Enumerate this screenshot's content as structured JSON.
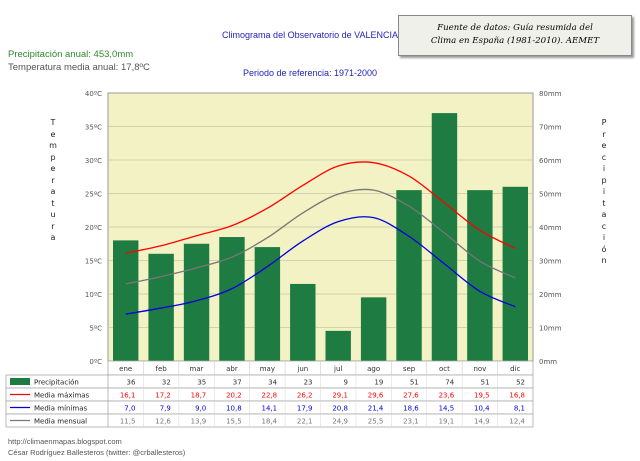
{
  "chart_data": {
    "type": "bar+line",
    "title": "Climograma del Observatorio de VALENCIA",
    "subtitle": "Periodo de referencia: 1971-2000",
    "source_note_line1": "Fuente de datos: Guía resumida del",
    "source_note_line2": "Clima en España (1981-2010). AEMET",
    "annual_precipitation": "Precipitación anual: 453,0mm",
    "annual_temperature": "Temperatura media anual: 17,8ºC",
    "left_axis_label": "Temperatura",
    "right_axis_label": "Precipitación",
    "categories": [
      "ene",
      "feb",
      "mar",
      "abr",
      "may",
      "jun",
      "jul",
      "ago",
      "sep",
      "oct",
      "nov",
      "dic"
    ],
    "left_ylim": [
      0,
      40
    ],
    "left_ticks": [
      "0ºC",
      "5ºC",
      "10ºC",
      "15ºC",
      "20ºC",
      "25ºC",
      "30ºC",
      "35ºC",
      "40ºC"
    ],
    "right_ylim": [
      0,
      80
    ],
    "right_ticks": [
      "0mm",
      "10mm",
      "20mm",
      "30mm",
      "40mm",
      "50mm",
      "60mm",
      "70mm",
      "80mm"
    ],
    "series": [
      {
        "name": "Precipitación",
        "kind": "bar",
        "axis": "right",
        "color": "#1e7b41",
        "values": [
          36,
          32,
          35,
          37,
          34,
          23,
          9,
          19,
          51,
          74,
          51,
          52
        ],
        "labels": [
          "36",
          "32",
          "35",
          "37",
          "34",
          "23",
          "9",
          "19",
          "51",
          "74",
          "51",
          "52"
        ]
      },
      {
        "name": "Media máximas",
        "kind": "line",
        "axis": "left",
        "color": "#ff0000",
        "values": [
          16.1,
          17.2,
          18.7,
          20.2,
          22.8,
          26.2,
          29.1,
          29.6,
          27.6,
          23.6,
          19.5,
          16.8
        ],
        "labels": [
          "16,1",
          "17,2",
          "18,7",
          "20,2",
          "22,8",
          "26,2",
          "29,1",
          "29,6",
          "27,6",
          "23,6",
          "19,5",
          "16,8"
        ]
      },
      {
        "name": "Media mínimas",
        "kind": "line",
        "axis": "left",
        "color": "#0000dd",
        "values": [
          7.0,
          7.9,
          9.0,
          10.8,
          14.1,
          17.9,
          20.8,
          21.4,
          18.6,
          14.5,
          10.4,
          8.1
        ],
        "labels": [
          "7,0",
          "7,9",
          "9,0",
          "10,8",
          "14,1",
          "17,9",
          "20,8",
          "21,4",
          "18,6",
          "14,5",
          "10,4",
          "8,1"
        ]
      },
      {
        "name": "Media mensual",
        "kind": "line",
        "axis": "left",
        "color": "#777777",
        "values": [
          11.5,
          12.6,
          13.9,
          15.5,
          18.4,
          22.1,
          24.9,
          25.5,
          23.1,
          19.1,
          14.9,
          12.4
        ],
        "labels": [
          "11,5",
          "12,6",
          "13,9",
          "15,5",
          "18,4",
          "22,1",
          "24,9",
          "25,5",
          "23,1",
          "19,1",
          "14,9",
          "12,4"
        ]
      }
    ]
  },
  "footer": {
    "url": "http://climaenmapas.blogspot.com",
    "author": "César Rodríguez Ballesteros (twitter: @crballesteros)"
  }
}
